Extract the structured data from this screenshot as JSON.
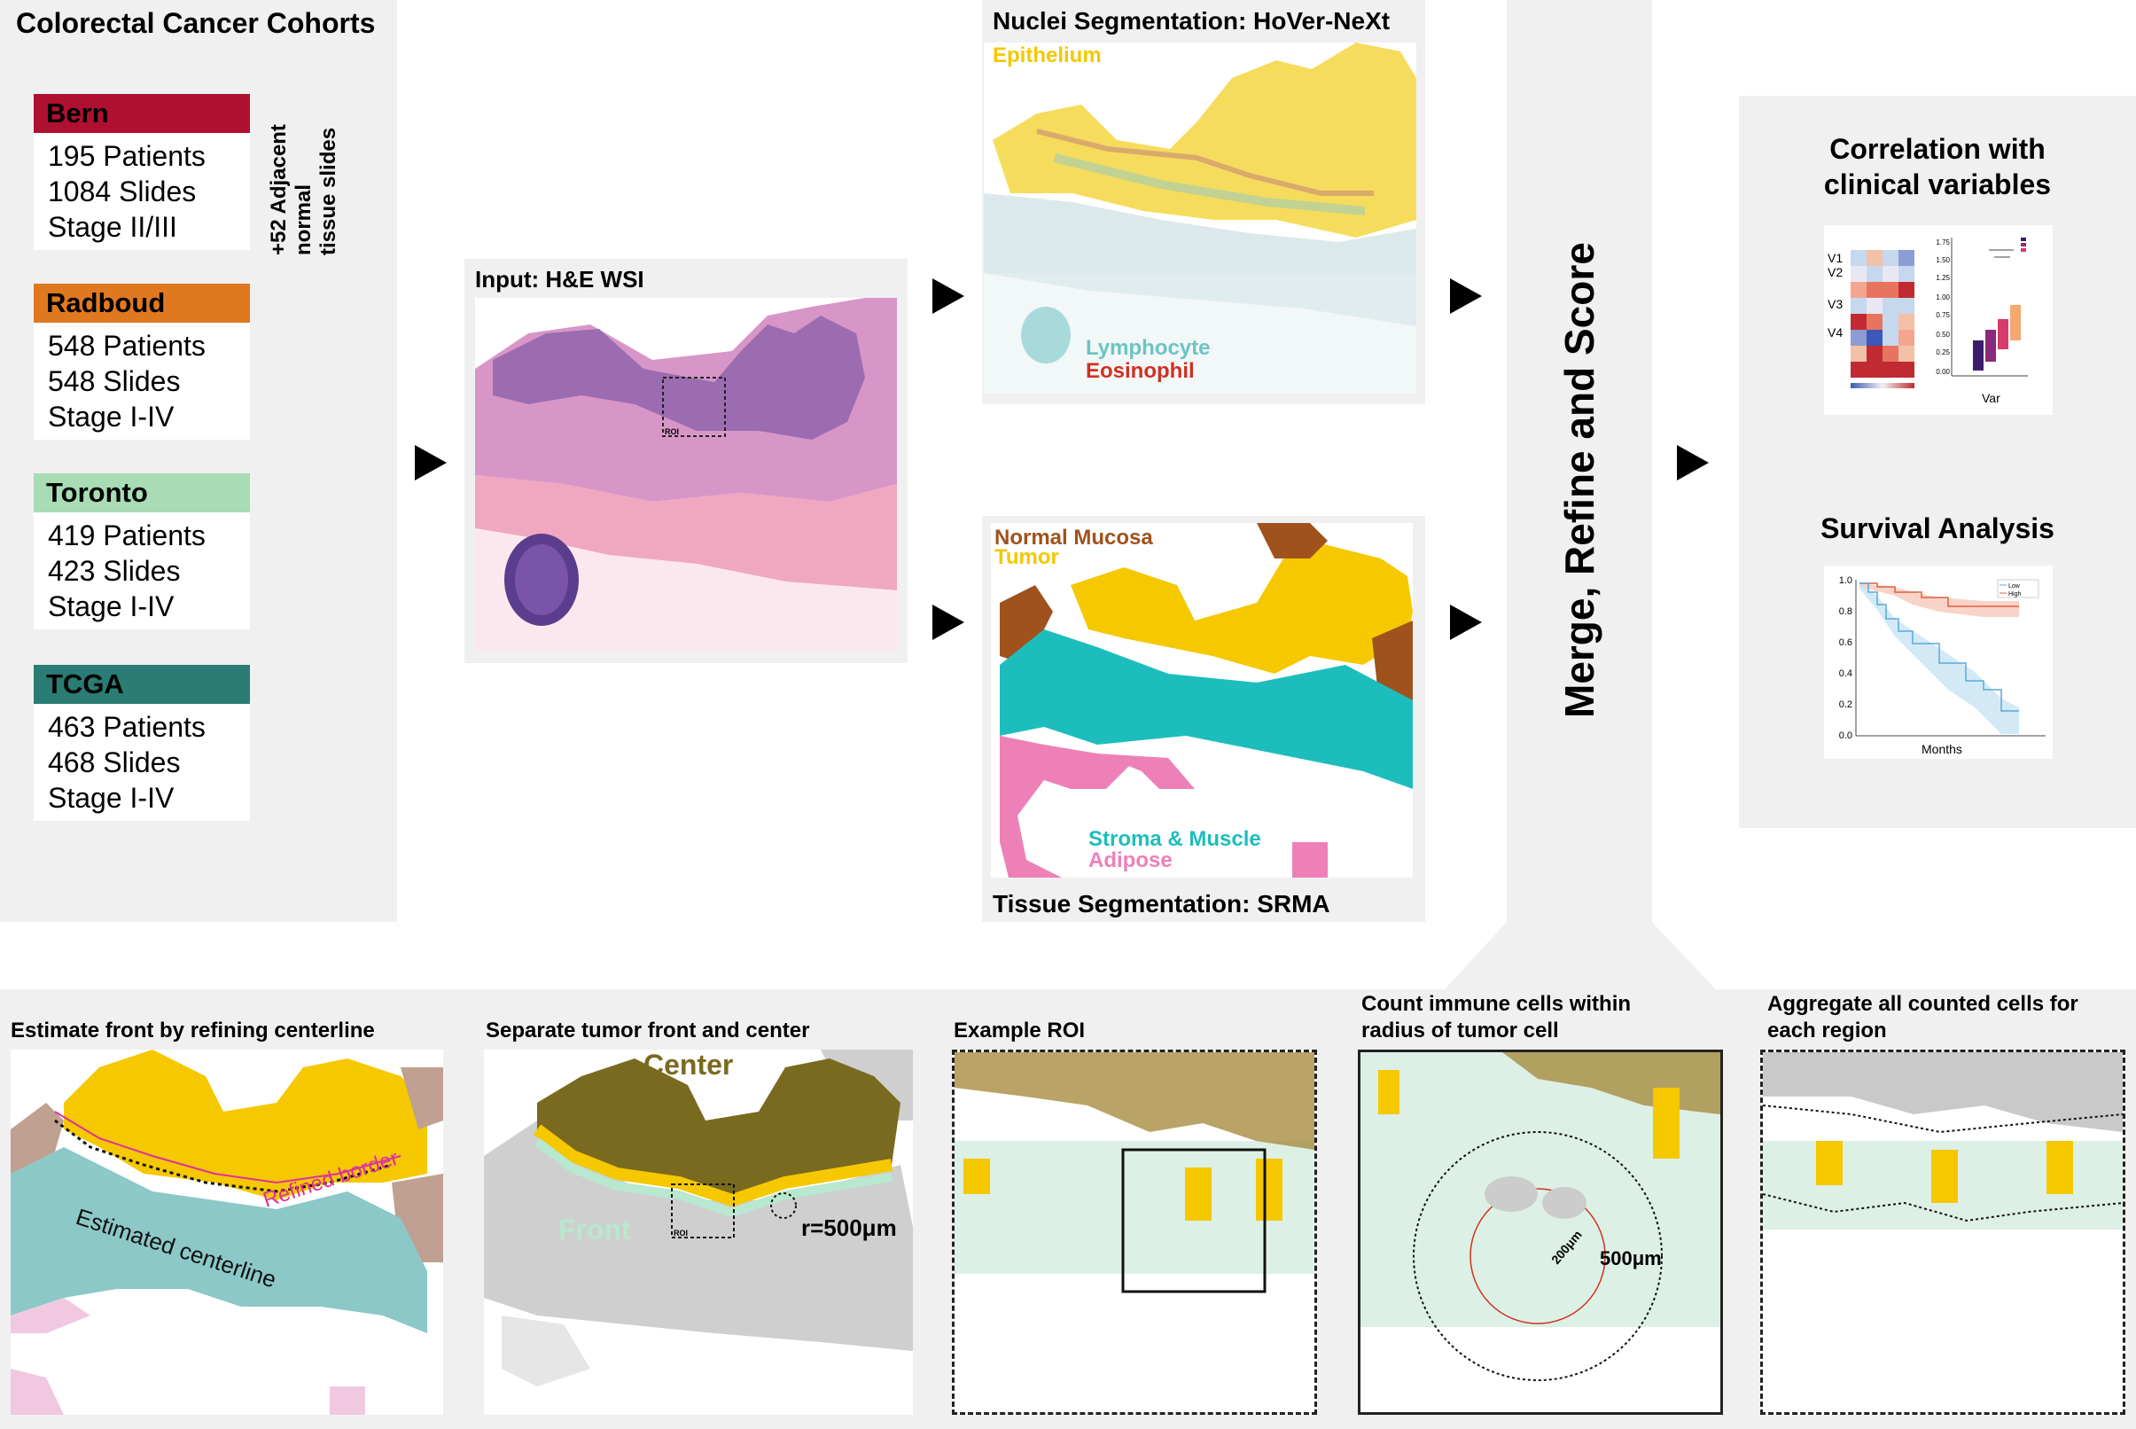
{
  "colors": {
    "bern": "#b01030",
    "radboud": "#e07820",
    "toronto": "#a8dcb4",
    "tcga": "#2a7c74",
    "panel_bg": "#f0f0f0",
    "epithelium": "#f5c800",
    "lymphocyte": "#6cc4c4",
    "eosinophil": "#d03020",
    "normal_mucosa": "#a0521d",
    "stroma": "#1ebdbd",
    "adipose": "#ee80b8",
    "center": "#7a6a20",
    "front": "#b8e8d0"
  },
  "cohorts": {
    "title": "Colorectal Cancer Cohorts",
    "adjacent_line1": "+52 Adjacent",
    "adjacent_line2": "normal",
    "adjacent_line3": "tissue slides",
    "items": [
      {
        "name": "Bern",
        "patients": "195 Patients",
        "slides": "1084 Slides",
        "stage": "Stage II/III"
      },
      {
        "name": "Radboud",
        "patients": "548 Patients",
        "slides": "548 Slides",
        "stage": "Stage I-IV"
      },
      {
        "name": "Toronto",
        "patients": "419 Patients",
        "slides": "423 Slides",
        "stage": "Stage I-IV"
      },
      {
        "name": "TCGA",
        "patients": "463 Patients",
        "slides": "468 Slides",
        "stage": "Stage I-IV"
      }
    ]
  },
  "input": {
    "title": "Input: H&E WSI",
    "roi_label": "ROI"
  },
  "nuclei": {
    "title": "Nuclei Segmentation: HoVer-NeXt",
    "epithelium": "Epithelium",
    "lymphocyte": "Lymphocyte",
    "eosinophil": "Eosinophil"
  },
  "tissue": {
    "title": "Tissue Segmentation: SRMA",
    "normal_mucosa": "Normal Mucosa",
    "tumor": "Tumor",
    "stroma": "Stroma & Muscle",
    "adipose": "Adipose"
  },
  "merge": {
    "label": "Merge, Refine and Score"
  },
  "results": {
    "correlation_title_1": "Correlation with",
    "correlation_title_2": "clinical variables",
    "heatmap_rows": [
      "V1",
      "V2",
      "V3",
      "V4"
    ],
    "box_xlabel": "Var",
    "box_yticks": [
      "1.75",
      "1.50",
      "1.25",
      "1.00",
      "0.75",
      "0.50",
      "0.25",
      "0.00"
    ],
    "survival_title": "Survival Analysis",
    "km_yticks": [
      "1.0",
      "0.8",
      "0.6",
      "0.4",
      "0.2",
      "0.0"
    ],
    "km_xlabel": "Months",
    "km_legend": [
      "Low",
      "High"
    ]
  },
  "bottom": {
    "step1_title": "Estimate front by refining centerline",
    "step1_refined": "Refined border",
    "step1_centerline": "Estimated centerline",
    "step2_title": "Separate tumor front and center",
    "step2_center": "Center",
    "step2_front": "Front",
    "step2_radius": "r=500μm",
    "step2_roi": "ROI",
    "step3_title": "Example ROI",
    "step4_title_1": "Count immune cells within",
    "step4_title_2": "radius of tumor cell",
    "step4_r200": "200μm",
    "step4_r500": "500μm",
    "step5_title_1": "Aggregate all counted cells for",
    "step5_title_2": "each region"
  }
}
